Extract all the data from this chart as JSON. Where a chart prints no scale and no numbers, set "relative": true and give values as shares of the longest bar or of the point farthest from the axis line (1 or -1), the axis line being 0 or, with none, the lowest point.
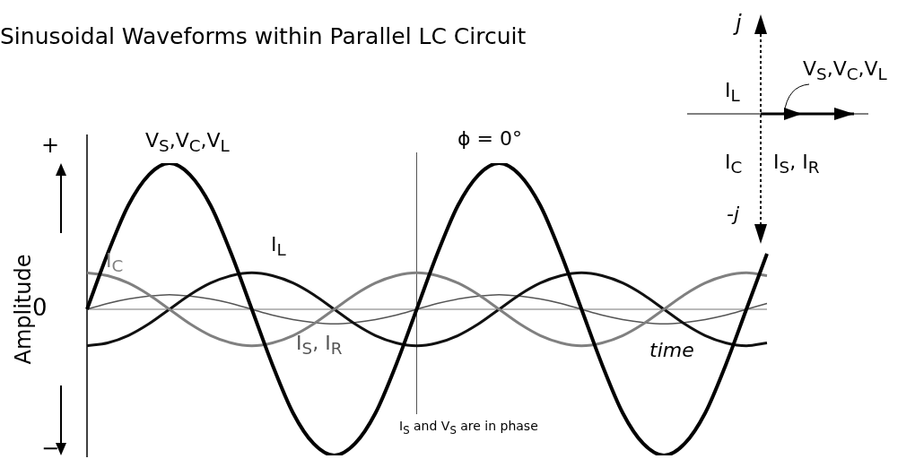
{
  "chart_data": {
    "type": "line",
    "title": "Sinusoidal Waveforms within Parallel LC Circuit",
    "ylabel": "Amplitude",
    "xlabel": "time",
    "relative": true,
    "legend": false,
    "grid": false,
    "tick_labels": false,
    "marker": "none",
    "categories": [
      null,
      null,
      null,
      null,
      null,
      null,
      null,
      null,
      null,
      null,
      null,
      null,
      null,
      null,
      null,
      null,
      null,
      null,
      null,
      null,
      null,
      null,
      null,
      null,
      null,
      null,
      null,
      null,
      null,
      null,
      null,
      null,
      null,
      null
    ],
    "ref_lines": [
      {
        "axis": "x",
        "value": null,
        "label": "ϕ = 0°"
      }
    ],
    "series": [
      {
        "name": "V$_{S}$,V$_{C}$,V$_{L}$",
        "color": "#000000",
        "values": [
          0,
          0.38,
          0.71,
          0.92,
          1,
          0.92,
          0.71,
          0.38,
          0,
          -0.38,
          -0.71,
          -0.92,
          -1,
          -0.92,
          -0.71,
          -0.38,
          0,
          0.38,
          0.71,
          0.92,
          1,
          0.92,
          0.71,
          0.38,
          0,
          -0.38,
          -0.71,
          -0.92,
          -1,
          -0.92,
          -0.71,
          -0.38,
          0,
          0.38
        ]
      },
      {
        "name": "I$_{C}$",
        "color": "#808080",
        "values": [
          0.25,
          0.23,
          0.18,
          0.1,
          0,
          -0.1,
          -0.18,
          -0.23,
          -0.25,
          -0.23,
          -0.18,
          -0.1,
          0,
          0.1,
          0.18,
          0.23,
          0.25,
          0.23,
          0.18,
          0.1,
          0,
          -0.1,
          -0.18,
          -0.23,
          -0.25,
          -0.23,
          -0.18,
          -0.1,
          0,
          0.1,
          0.18,
          0.23,
          0.25,
          0.23
        ]
      },
      {
        "name": "I$_{L}$",
        "color": "#111111",
        "values": [
          -0.25,
          -0.23,
          -0.18,
          -0.1,
          0,
          0.1,
          0.18,
          0.23,
          0.25,
          0.23,
          0.18,
          0.1,
          0,
          -0.1,
          -0.18,
          -0.23,
          -0.25,
          -0.23,
          -0.18,
          -0.1,
          0,
          0.1,
          0.18,
          0.23,
          0.25,
          0.23,
          0.18,
          0.1,
          0,
          -0.1,
          -0.18,
          -0.23,
          -0.25,
          -0.23
        ]
      },
      {
        "name": "I$_{S}$, I$_{R}$",
        "color": "#555555",
        "values": [
          0,
          0.04,
          0.07,
          0.09,
          0.1,
          0.09,
          0.07,
          0.04,
          0,
          -0.04,
          -0.07,
          -0.09,
          -0.1,
          -0.09,
          -0.07,
          -0.04,
          0,
          0.04,
          0.07,
          0.09,
          0.1,
          0.09,
          0.07,
          0.04,
          0,
          -0.04,
          -0.07,
          -0.09,
          -0.1,
          -0.09,
          -0.07,
          -0.04,
          0,
          0.04
        ]
      }
    ],
    "annotations": [
      "+",
      "0",
      "−",
      "I$_{S}$ and V$_{S}$ are in phase",
      "j",
      "I$_{L}$",
      "V$_{S}$,V$_{C}$,V$_{L}$",
      "I$_{C}$",
      "I$_{S}$, I$_{R}$",
      "-j"
    ]
  }
}
